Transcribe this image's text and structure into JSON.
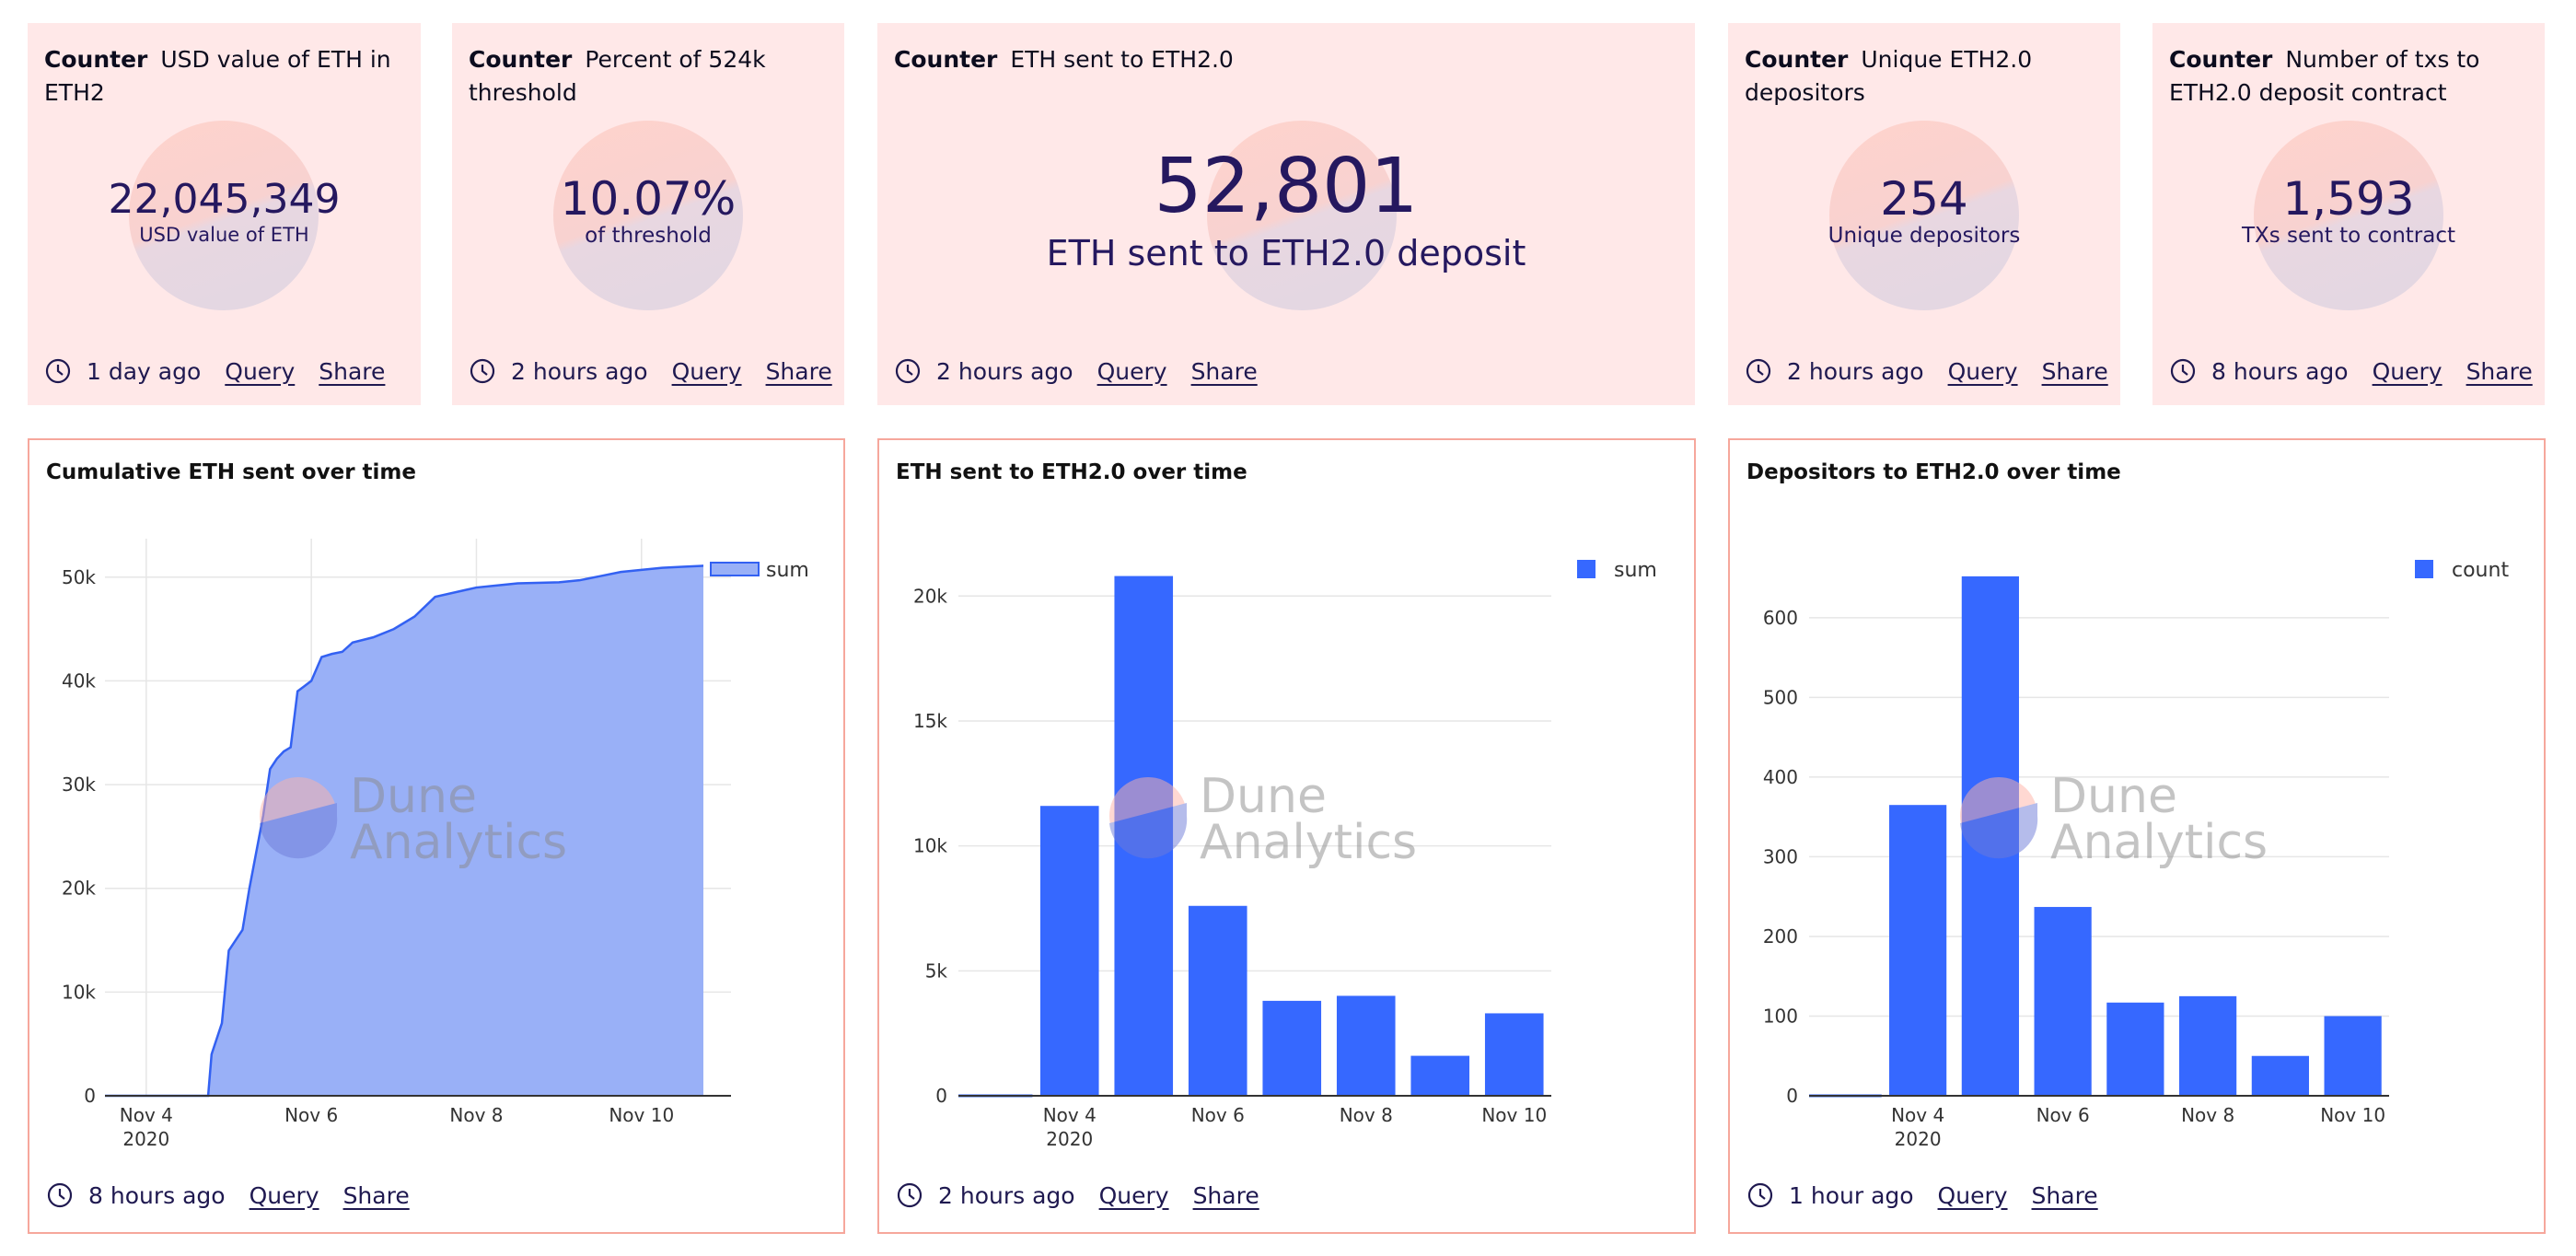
{
  "counters": [
    {
      "kind": "Counter",
      "title": "USD value of ETH in ETH2",
      "value": "22,045,349",
      "label": "USD value of ETH",
      "time": "1 day ago"
    },
    {
      "kind": "Counter",
      "title": "Percent of 524k threshold",
      "value": "10.07%",
      "label": "of threshold",
      "time": "2 hours ago"
    },
    {
      "kind": "Counter",
      "title": "ETH sent to ETH2.0",
      "value": "52,801",
      "label": "ETH sent to ETH2.0 deposit",
      "time": "2 hours ago"
    },
    {
      "kind": "Counter",
      "title": "Unique ETH2.0 depositors",
      "value": "254",
      "label": "Unique depositors",
      "time": "2 hours ago"
    },
    {
      "kind": "Counter",
      "title": "Number of txs to ETH2.0 deposit contract",
      "value": "1,593",
      "label": "TXs sent to contract",
      "time": "8 hours ago"
    }
  ],
  "links": {
    "query": "Query",
    "share": "Share"
  },
  "watermark": {
    "line1": "Dune",
    "line2": "Analytics"
  },
  "colors": {
    "counter_bg": "#ffe8e8",
    "value_text": "#25185f",
    "card_border": "#f6a79c",
    "bar": "#3668ff",
    "area_fill": "#99b0f7",
    "area_line": "#3361f2"
  },
  "chart_data": [
    {
      "type": "area",
      "title": "Cumulative ETH sent over time",
      "time": "8 hours ago",
      "legend": [
        "sum"
      ],
      "legend_position": "top-right",
      "grid": true,
      "xlim": [
        "2020-11-03T12:00",
        "2020-11-10T18:00"
      ],
      "ylim": [
        0,
        53000
      ],
      "yticks": [
        "0",
        "10k",
        "20k",
        "30k",
        "40k",
        "50k"
      ],
      "xticks": [
        "Nov 4\n2020",
        "Nov 6",
        "Nov 8",
        "Nov 10"
      ],
      "series": [
        {
          "name": "sum",
          "x": [
            "2020-11-03T12:00",
            "2020-11-04T18:00",
            "2020-11-04T19:00",
            "2020-11-04T22:00",
            "2020-11-05T00:00",
            "2020-11-05T02:00",
            "2020-11-05T04:00",
            "2020-11-05T06:00",
            "2020-11-05T08:00",
            "2020-11-05T10:00",
            "2020-11-05T12:00",
            "2020-11-05T14:00",
            "2020-11-05T16:00",
            "2020-11-05T18:00",
            "2020-11-05T20:00",
            "2020-11-05T22:00",
            "2020-11-06T00:00",
            "2020-11-06T03:00",
            "2020-11-06T06:00",
            "2020-11-06T09:00",
            "2020-11-06T12:00",
            "2020-11-06T18:00",
            "2020-11-07T00:00",
            "2020-11-07T06:00",
            "2020-11-07T12:00",
            "2020-11-08T00:00",
            "2020-11-08T12:00",
            "2020-11-09T00:00",
            "2020-11-09T06:00",
            "2020-11-09T12:00",
            "2020-11-09T18:00",
            "2020-11-10T00:00",
            "2020-11-10T06:00",
            "2020-11-10T12:00",
            "2020-11-10T18:00"
          ],
          "y": [
            0,
            0,
            4000,
            7000,
            14000,
            15000,
            16000,
            20000,
            23500,
            27000,
            31500,
            32500,
            33200,
            33600,
            39000,
            39500,
            40000,
            42300,
            42600,
            42800,
            43700,
            44200,
            45000,
            46200,
            48100,
            49000,
            49400,
            49500,
            49700,
            50100,
            50500,
            50700,
            50900,
            51000,
            51100
          ]
        }
      ]
    },
    {
      "type": "bar",
      "title": "ETH sent to ETH2.0 over time",
      "time": "2 hours ago",
      "legend": [
        "sum"
      ],
      "legend_position": "top-right",
      "grid": true,
      "ylim": [
        0,
        22000
      ],
      "yticks": [
        "0",
        "5k",
        "10k",
        "15k",
        "20k"
      ],
      "xticks": [
        "Nov 4\n2020",
        "Nov 6",
        "Nov 8",
        "Nov 10"
      ],
      "categories": [
        "Nov 3",
        "Nov 4",
        "Nov 5",
        "Nov 6",
        "Nov 7",
        "Nov 8",
        "Nov 9",
        "Nov 10"
      ],
      "series": [
        {
          "name": "sum",
          "values": [
            0,
            11600,
            20800,
            7600,
            3800,
            4000,
            1600,
            3300
          ]
        }
      ]
    },
    {
      "type": "bar",
      "title": "Depositors to ETH2.0 over time",
      "time": "1 hour ago",
      "legend": [
        "count"
      ],
      "legend_position": "top-right",
      "grid": true,
      "ylim": [
        0,
        690
      ],
      "yticks": [
        "0",
        "100",
        "200",
        "300",
        "400",
        "500",
        "600"
      ],
      "xticks": [
        "Nov 4\n2020",
        "Nov 6",
        "Nov 8",
        "Nov 10"
      ],
      "categories": [
        "Nov 3",
        "Nov 4",
        "Nov 5",
        "Nov 6",
        "Nov 7",
        "Nov 8",
        "Nov 9",
        "Nov 10"
      ],
      "series": [
        {
          "name": "count",
          "values": [
            0,
            365,
            652,
            237,
            117,
            125,
            50,
            100
          ]
        }
      ]
    }
  ]
}
